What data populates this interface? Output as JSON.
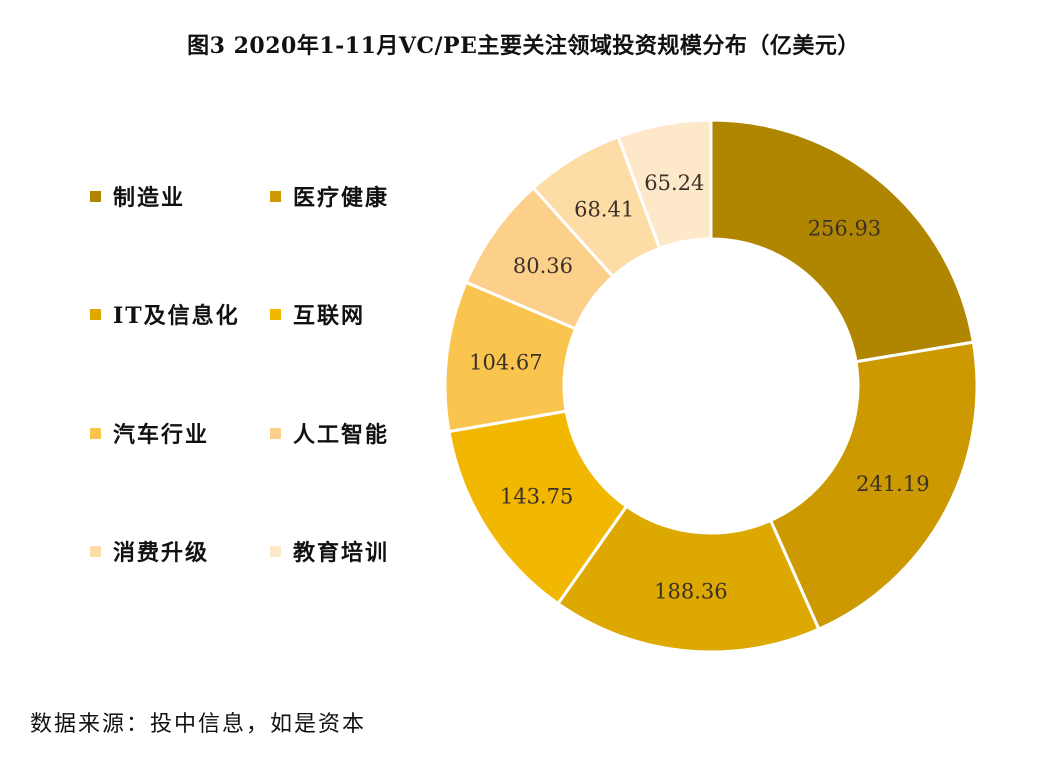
{
  "chart_data": {
    "type": "pie",
    "variant": "donut",
    "title": "图3   2020年1-11月VC/PE主要关注领域投资规模分布（亿美元）",
    "unit": "亿美元",
    "categories": [
      "制造业",
      "医疗健康",
      "IT及信息化",
      "互联网",
      "汽车行业",
      "人工智能",
      "消费升级",
      "教育培训"
    ],
    "values": [
      256.93,
      241.19,
      188.36,
      143.75,
      104.67,
      80.36,
      68.41,
      65.24
    ],
    "value_labels": [
      "256.93",
      "241.19",
      "188.36",
      "143.75",
      "104.67",
      "80.36",
      "68.41",
      "65.24"
    ],
    "colors": [
      "#B08600",
      "#CC9900",
      "#DDA800",
      "#F2B700",
      "#FAC54E",
      "#FCD08A",
      "#FDDCA6",
      "#FEE8CA"
    ],
    "legend_position": "left"
  },
  "source": "数据来源：投中信息，如是资本"
}
